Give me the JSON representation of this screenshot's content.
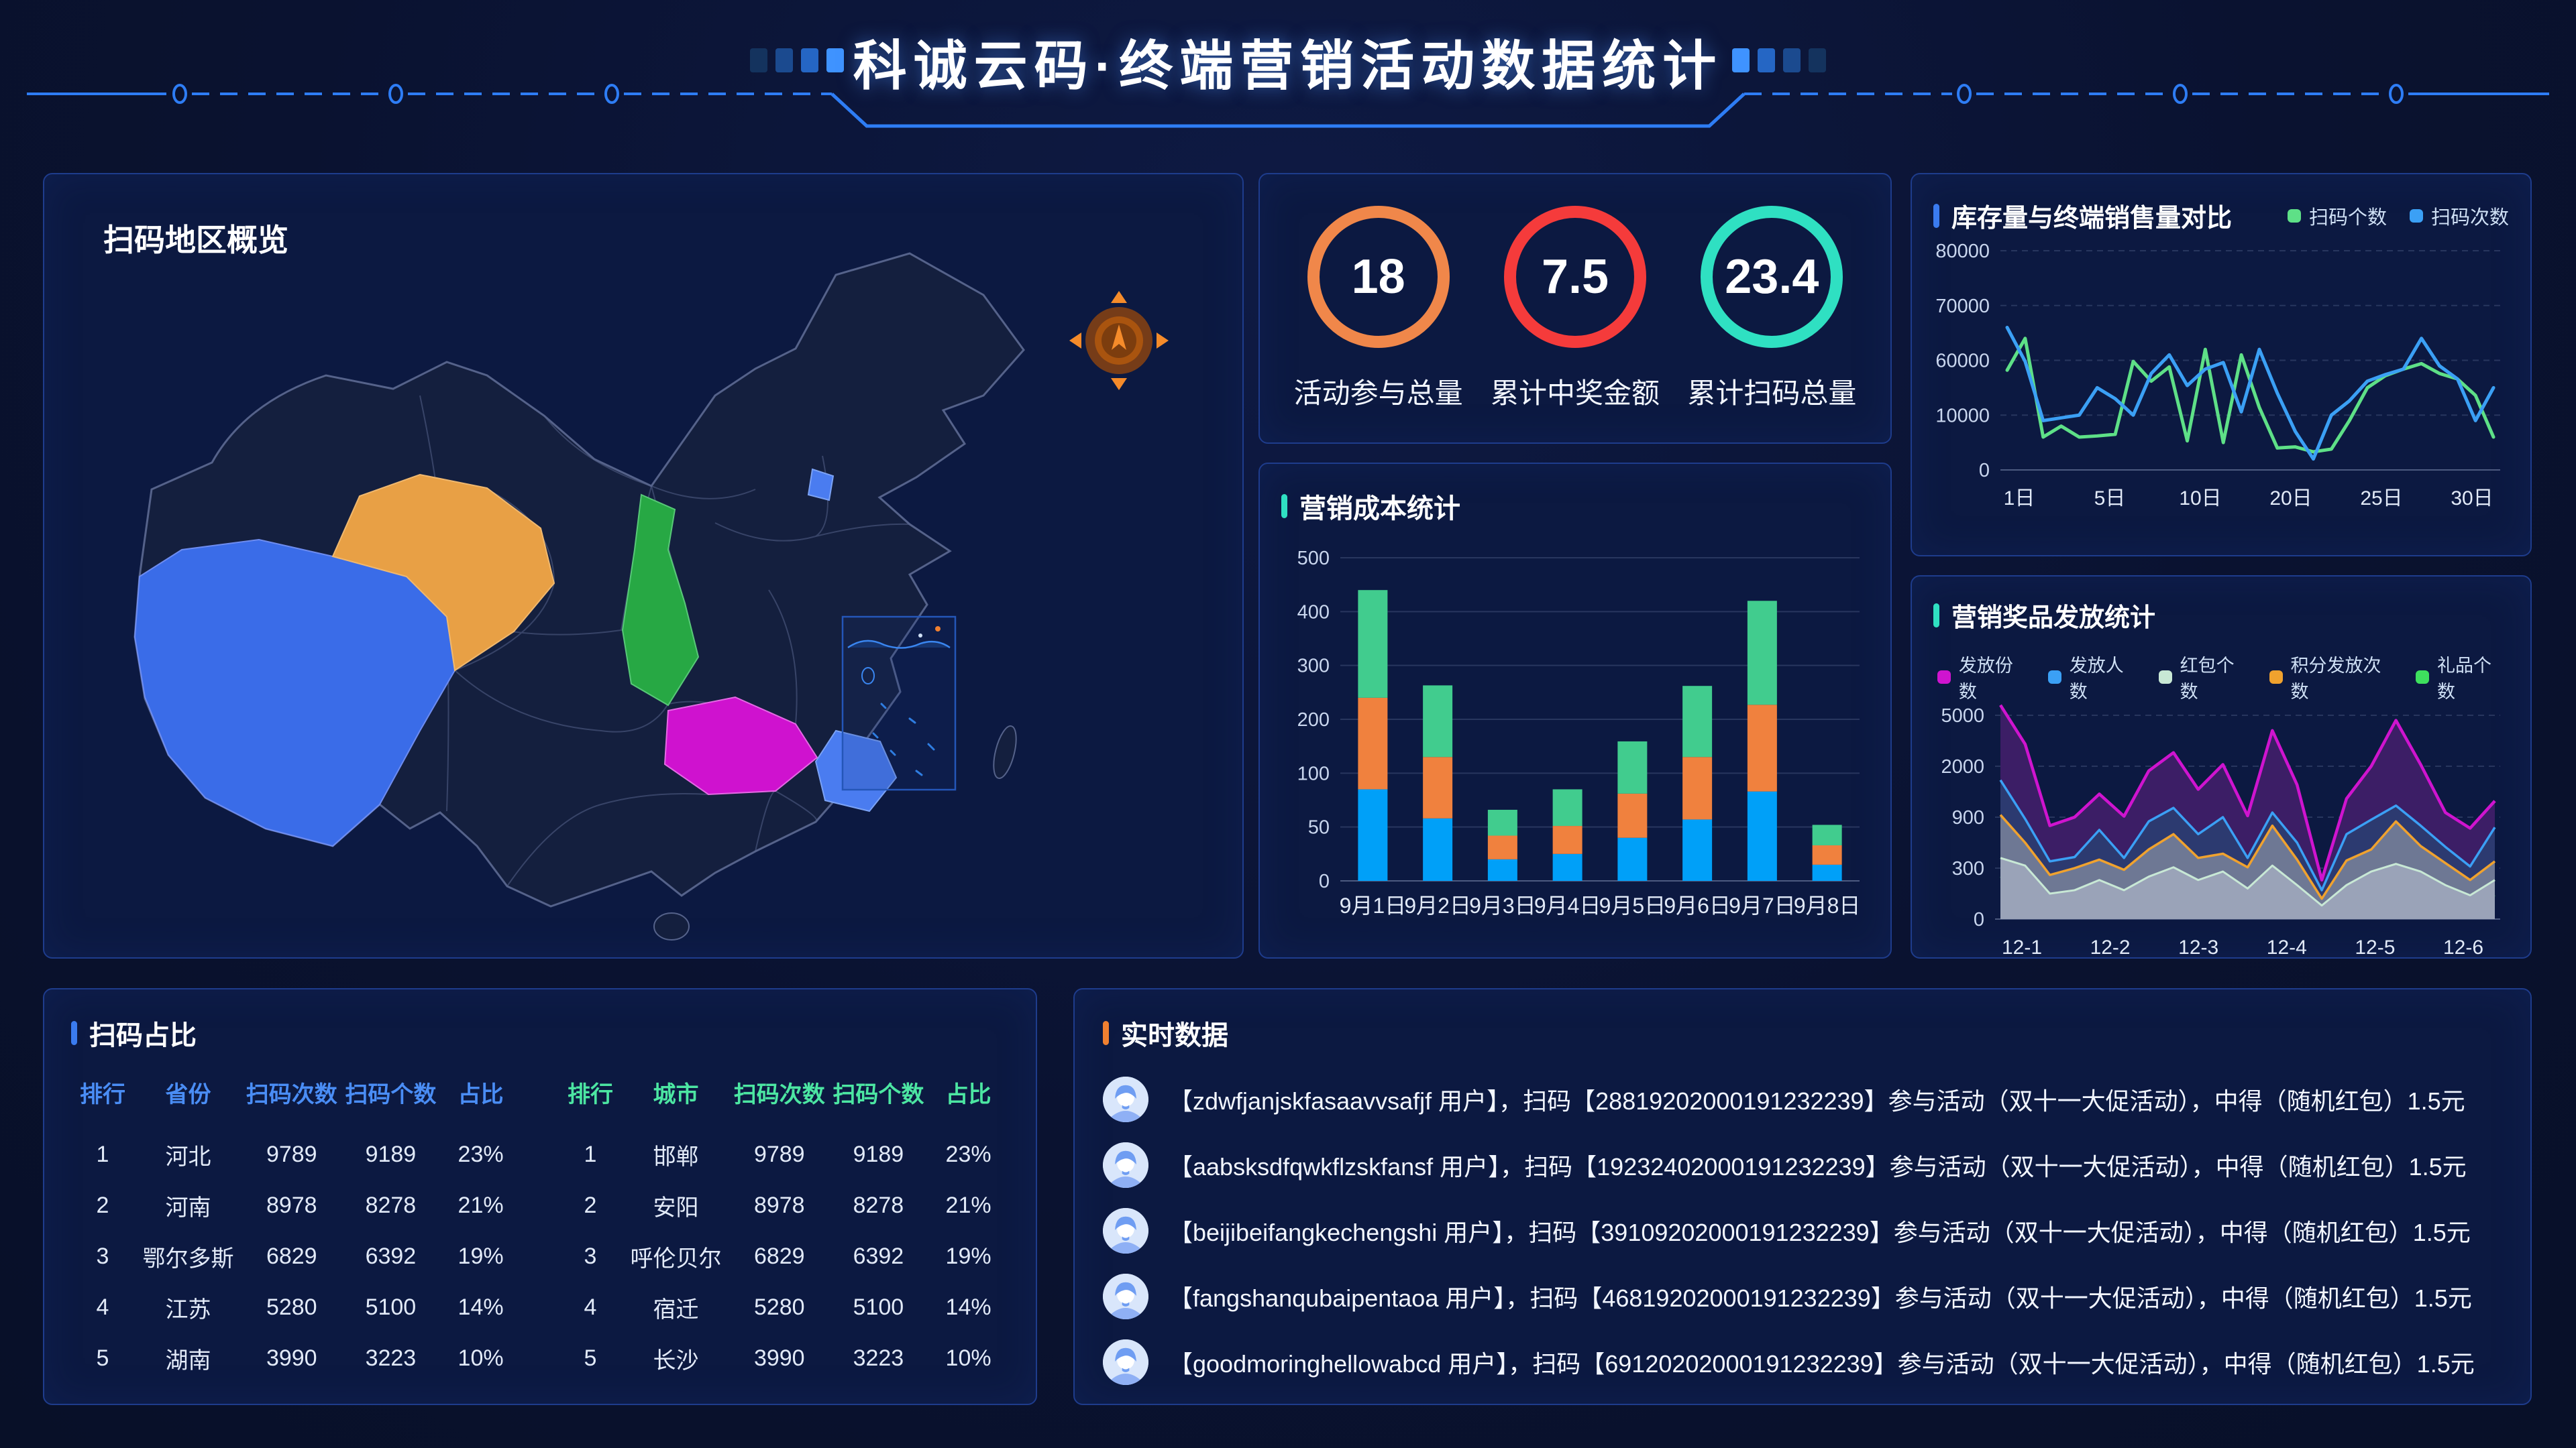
{
  "colors": {
    "page_bg": "#0a1230",
    "panel_bg": "#0c1941",
    "panel_border": "#1e3c8c",
    "accent_blue": "#3a7bf0",
    "accent_teal": "#2fe0c2",
    "accent_orange": "#f08030",
    "kpi_orange": "#f0874a",
    "kpi_red": "#f53b3b",
    "kpi_teal": "#2fe0c2",
    "bar_blue": "#00a0f8",
    "bar_orange": "#f0813e",
    "bar_green": "#41cc8e",
    "line_green": "#5ee087",
    "line_blue": "#3ba0f5",
    "area_magenta": "#cf14cf",
    "area_blue": "#3ba0f5",
    "area_mint": "#c8e8d5",
    "area_orange": "#f0a22e",
    "area_green": "#3ee05e",
    "table_header_blue": "#4a8df5",
    "table_header_green": "#4ce6a2",
    "map_tibet": "#3a6ce8",
    "map_qinghai": "#e8a045",
    "map_shaanxi": "#27a844",
    "map_hubei": "#cf12cf",
    "map_east": "#4a7cf0",
    "map_beijing": "#4a7cf0"
  },
  "header": {
    "title": "科诚云码·终端营销活动数据统计"
  },
  "map_panel": {
    "title": "扫码地区概览"
  },
  "kpi_panel": {
    "items": [
      {
        "value": "18",
        "label": "活动参与总量",
        "color_key": "kpi_orange"
      },
      {
        "value": "7.5",
        "label": "累计中奖金额",
        "color_key": "kpi_red"
      },
      {
        "value": "23.4",
        "label": "累计扫码总量",
        "color_key": "kpi_teal"
      }
    ]
  },
  "ratio_panel": {
    "title": "扫码占比",
    "tables": [
      {
        "header_color": "blue",
        "headers": [
          "排行",
          "省份",
          "扫码次数",
          "扫码个数",
          "占比"
        ],
        "rows": [
          [
            "1",
            "河北",
            "9789",
            "9189",
            "23%"
          ],
          [
            "2",
            "河南",
            "8978",
            "8278",
            "21%"
          ],
          [
            "3",
            "鄂尔多斯",
            "6829",
            "6392",
            "19%"
          ],
          [
            "4",
            "江苏",
            "5280",
            "5100",
            "14%"
          ],
          [
            "5",
            "湖南",
            "3990",
            "3223",
            "10%"
          ]
        ]
      },
      {
        "header_color": "green",
        "headers": [
          "排行",
          "城市",
          "扫码次数",
          "扫码个数",
          "占比"
        ],
        "rows": [
          [
            "1",
            "邯郸",
            "9789",
            "9189",
            "23%"
          ],
          [
            "2",
            "安阳",
            "8978",
            "8278",
            "21%"
          ],
          [
            "3",
            "呼伦贝尔",
            "6829",
            "6392",
            "19%"
          ],
          [
            "4",
            "宿迁",
            "5280",
            "5100",
            "14%"
          ],
          [
            "5",
            "长沙",
            "3990",
            "3223",
            "10%"
          ]
        ]
      }
    ]
  },
  "realtime_panel": {
    "title": "实时数据",
    "rows": [
      "【zdwfjanjskfasaavvsafjf 用户】，扫码【28819202000191232239】参与活动（双十一大促活动），中得（随机红包）1.5元",
      "【aabsksdfqwkflzskfansf 用户】，扫码【19232402000191232239】参与活动（双十一大促活动），中得（随机红包）1.5元",
      "【beijibeifangkechengshi 用户】，扫码【39109202000191232239】参与活动（双十一大促活动），中得（随机红包）1.5元",
      "【fangshanqubaipentaoa 用户】，扫码【46819202000191232239】参与活动（双十一大促活动），中得（随机红包）1.5元",
      "【goodmoringhellowabcd 用户】，扫码【69120202000191232239】参与活动（双十一大促活动），中得（随机红包）1.5元"
    ]
  },
  "chart_data": [
    {
      "id": "cost",
      "type": "bar",
      "title": "营销成本统计",
      "stacked": true,
      "grid": "solid",
      "categories": [
        "9月1日",
        "9月2日",
        "9月3日",
        "9月4日",
        "9月5日",
        "9月6日",
        "9月7日",
        "9月8日"
      ],
      "yticks": [
        0,
        50,
        100,
        200,
        300,
        400,
        500
      ],
      "series": [
        {
          "name": "blue",
          "color_key": "bar_blue",
          "values": [
            85,
            58,
            20,
            25,
            40,
            57,
            83,
            15
          ]
        },
        {
          "name": "orange",
          "color_key": "bar_orange",
          "values": [
            155,
            72,
            22,
            26,
            41,
            73,
            144,
            18
          ]
        },
        {
          "name": "green",
          "color_key": "bar_green",
          "values": [
            200,
            133,
            24,
            34,
            78,
            132,
            193,
            19
          ]
        }
      ]
    },
    {
      "id": "stock",
      "type": "line",
      "title": "库存量与终端销售量对比",
      "grid": "dashed",
      "yticks": [
        0,
        10000,
        60000,
        70000,
        80000
      ],
      "xticks": [
        "1日",
        "5日",
        "10日",
        "20日",
        "25日",
        "30日"
      ],
      "series": [
        {
          "name": "扫码个数",
          "color_key": "line_green",
          "values": [
            51000,
            64000,
            6000,
            8000,
            6000,
            6200,
            6500,
            59000,
            41000,
            54000,
            5300,
            62000,
            5000,
            61000,
            17000,
            4000,
            4200,
            3300,
            3800,
            9000,
            35000,
            46000,
            52000,
            57000,
            48000,
            43000,
            28000,
            6000
          ]
        },
        {
          "name": "扫码次数",
          "color_key": "line_blue",
          "values": [
            66000,
            59000,
            9000,
            9500,
            10000,
            35000,
            25000,
            10000,
            48000,
            61000,
            37000,
            52000,
            58000,
            13000,
            62000,
            30000,
            7000,
            2000,
            10000,
            23000,
            41000,
            47000,
            52000,
            64000,
            55000,
            43000,
            9000,
            35000
          ]
        }
      ]
    },
    {
      "id": "prize",
      "type": "area",
      "title": "营销奖品发放统计",
      "grid": "dashed",
      "yticks": [
        0,
        300,
        900,
        2000,
        5000
      ],
      "xticks": [
        "12-1",
        "12-2",
        "12-3",
        "12-4",
        "12-5",
        "12-6"
      ],
      "series": [
        {
          "name": "发放份数",
          "color_key": "area_magenta",
          "fill": "#3c1e66",
          "values": [
            5600,
            3300,
            800,
            900,
            1400,
            920,
            1900,
            2800,
            1500,
            2100,
            930,
            4100,
            1600,
            230,
            1300,
            2000,
            4700,
            2100,
            1000,
            770,
            1250
          ]
        },
        {
          "name": "发放人数",
          "color_key": "area_blue",
          "fill": "#2c3a70",
          "values": [
            1700,
            880,
            380,
            430,
            750,
            420,
            850,
            1100,
            700,
            900,
            420,
            1000,
            600,
            170,
            700,
            870,
            1150,
            800,
            550,
            320,
            780
          ]
        },
        {
          "name": "红包个数",
          "color_key": "area_mint",
          "fill": "#9aa3b8",
          "values": [
            420,
            330,
            150,
            170,
            230,
            170,
            250,
            310,
            230,
            280,
            180,
            330,
            200,
            80,
            200,
            280,
            350,
            280,
            200,
            140,
            230
          ]
        },
        {
          "name": "积分发放次数",
          "color_key": "area_orange",
          "fill": "#6e7894",
          "values": [
            950,
            600,
            260,
            300,
            400,
            290,
            520,
            700,
            420,
            470,
            310,
            800,
            400,
            120,
            390,
            520,
            850,
            560,
            360,
            230,
            380
          ]
        },
        {
          "name": "礼品个数",
          "color_key": "area_green",
          "fill": "#3f6a55",
          "hidden_behind": true,
          "values": [
            250,
            200,
            90,
            100,
            140,
            100,
            150,
            190,
            140,
            170,
            110,
            200,
            120,
            50,
            120,
            170,
            210,
            170,
            120,
            85,
            140
          ]
        }
      ]
    }
  ]
}
